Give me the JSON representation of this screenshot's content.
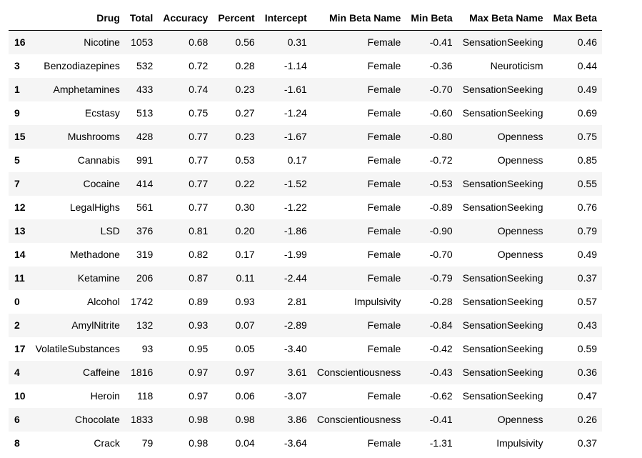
{
  "table": {
    "columns": [
      "",
      "Drug",
      "Total",
      "Accuracy",
      "Percent",
      "Intercept",
      "Min Beta Name",
      "Min Beta",
      "Max Beta Name",
      "Max Beta"
    ],
    "rows": [
      [
        "16",
        "Nicotine",
        "1053",
        "0.68",
        "0.56",
        "0.31",
        "Female",
        "-0.41",
        "SensationSeeking",
        "0.46"
      ],
      [
        "3",
        "Benzodiazepines",
        "532",
        "0.72",
        "0.28",
        "-1.14",
        "Female",
        "-0.36",
        "Neuroticism",
        "0.44"
      ],
      [
        "1",
        "Amphetamines",
        "433",
        "0.74",
        "0.23",
        "-1.61",
        "Female",
        "-0.70",
        "SensationSeeking",
        "0.49"
      ],
      [
        "9",
        "Ecstasy",
        "513",
        "0.75",
        "0.27",
        "-1.24",
        "Female",
        "-0.60",
        "SensationSeeking",
        "0.69"
      ],
      [
        "15",
        "Mushrooms",
        "428",
        "0.77",
        "0.23",
        "-1.67",
        "Female",
        "-0.80",
        "Openness",
        "0.75"
      ],
      [
        "5",
        "Cannabis",
        "991",
        "0.77",
        "0.53",
        "0.17",
        "Female",
        "-0.72",
        "Openness",
        "0.85"
      ],
      [
        "7",
        "Cocaine",
        "414",
        "0.77",
        "0.22",
        "-1.52",
        "Female",
        "-0.53",
        "SensationSeeking",
        "0.55"
      ],
      [
        "12",
        "LegalHighs",
        "561",
        "0.77",
        "0.30",
        "-1.22",
        "Female",
        "-0.89",
        "SensationSeeking",
        "0.76"
      ],
      [
        "13",
        "LSD",
        "376",
        "0.81",
        "0.20",
        "-1.86",
        "Female",
        "-0.90",
        "Openness",
        "0.79"
      ],
      [
        "14",
        "Methadone",
        "319",
        "0.82",
        "0.17",
        "-1.99",
        "Female",
        "-0.70",
        "Openness",
        "0.49"
      ],
      [
        "11",
        "Ketamine",
        "206",
        "0.87",
        "0.11",
        "-2.44",
        "Female",
        "-0.79",
        "SensationSeeking",
        "0.37"
      ],
      [
        "0",
        "Alcohol",
        "1742",
        "0.89",
        "0.93",
        "2.81",
        "Impulsivity",
        "-0.28",
        "SensationSeeking",
        "0.57"
      ],
      [
        "2",
        "AmylNitrite",
        "132",
        "0.93",
        "0.07",
        "-2.89",
        "Female",
        "-0.84",
        "SensationSeeking",
        "0.43"
      ],
      [
        "17",
        "VolatileSubstances",
        "93",
        "0.95",
        "0.05",
        "-3.40",
        "Female",
        "-0.42",
        "SensationSeeking",
        "0.59"
      ],
      [
        "4",
        "Caffeine",
        "1816",
        "0.97",
        "0.97",
        "3.61",
        "Conscientiousness",
        "-0.43",
        "SensationSeeking",
        "0.36"
      ],
      [
        "10",
        "Heroin",
        "118",
        "0.97",
        "0.06",
        "-3.07",
        "Female",
        "-0.62",
        "SensationSeeking",
        "0.47"
      ],
      [
        "6",
        "Chocolate",
        "1833",
        "0.98",
        "0.98",
        "3.86",
        "Conscientiousness",
        "-0.41",
        "Openness",
        "0.26"
      ],
      [
        "8",
        "Crack",
        "79",
        "0.98",
        "0.04",
        "-3.64",
        "Female",
        "-1.31",
        "Impulsivity",
        "0.37"
      ]
    ]
  }
}
